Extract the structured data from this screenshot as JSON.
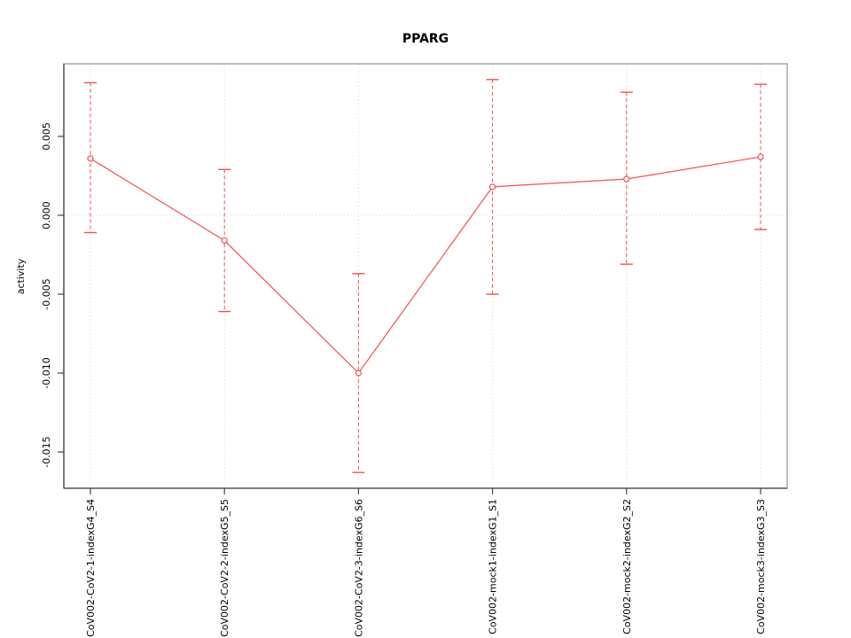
{
  "title": "PPARG",
  "colors": {
    "series": "#ef5252",
    "marker_fill": "#ffffff",
    "grid": "#d4d4d4",
    "box": "#999999",
    "axis": "#444444",
    "text": "#000000",
    "background": "#ffffff"
  },
  "chart_data": {
    "type": "line",
    "title": "PPARG",
    "xlabel": "",
    "ylabel": "activity",
    "legend": "none",
    "grid": "dotted vertical line at each category; dotted horizontal line at y=0",
    "marker": "open-circle",
    "error_bars": "dashed vertical lines with solid caps",
    "categories": [
      "CoV002-CoV2-1-indexG4_S4",
      "CoV002-CoV2-2-indexG5_S5",
      "CoV002-CoV2-3-indexG6_S6",
      "CoV002-mock1-indexG1_S1",
      "CoV002-mock2-indexG2_S2",
      "CoV002-mock3-indexG3_S3"
    ],
    "series": [
      {
        "name": "activity",
        "values": [
          0.0036,
          -0.0016,
          -0.01,
          0.0018,
          0.0023,
          0.0037
        ],
        "error_high": [
          0.0084,
          0.0029,
          -0.0037,
          0.0086,
          0.0078,
          0.0083
        ],
        "error_low": [
          -0.0011,
          -0.0061,
          -0.0163,
          -0.005,
          -0.0031,
          -0.0009
        ]
      }
    ],
    "yticks": [
      0.005,
      0.0,
      -0.005,
      -0.01,
      -0.015
    ],
    "ytick_labels": [
      "0.005",
      "0.000",
      "-0.005",
      "-0.010",
      "-0.015"
    ],
    "ylim": [
      -0.0173,
      0.0096
    ]
  }
}
